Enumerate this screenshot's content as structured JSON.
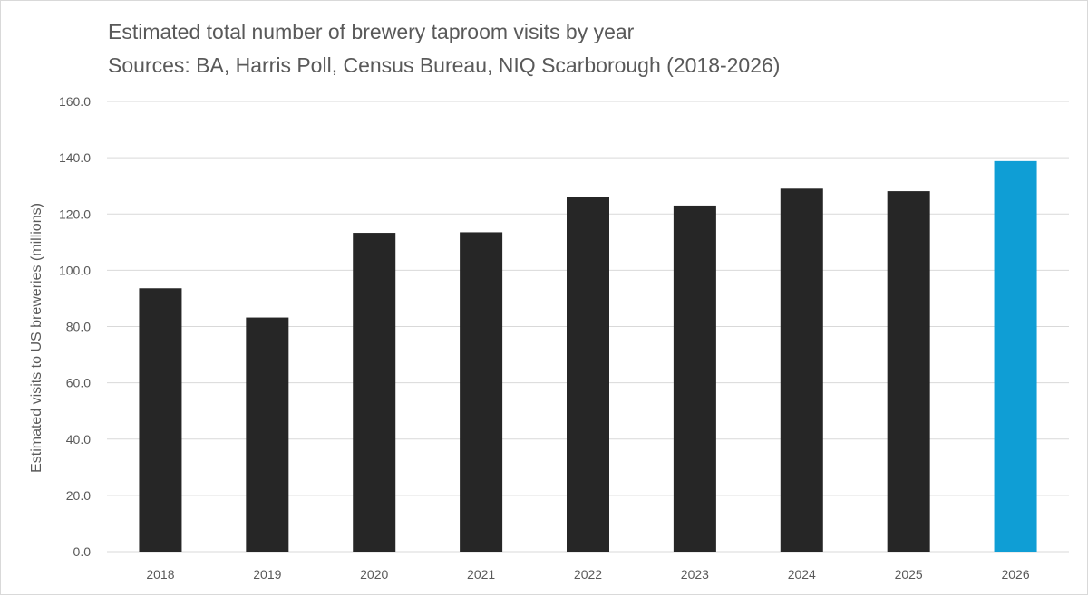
{
  "chart_data": {
    "type": "bar",
    "title": "Estimated total number of brewery taproom visits by year",
    "subtitle": "Sources: BA, Harris Poll, Census Bureau, NIQ Scarborough (2018-2026)",
    "xlabel": "",
    "ylabel": "Estimated visits to US breweries (millions)",
    "categories": [
      "2018",
      "2019",
      "2020",
      "2021",
      "2022",
      "2023",
      "2024",
      "2025",
      "2026"
    ],
    "values": [
      93.6,
      83.2,
      113.3,
      113.5,
      126.0,
      123.0,
      129.0,
      128.1,
      138.8
    ],
    "ylim": [
      0,
      160
    ],
    "yticks": [
      "0.0",
      "20.0",
      "40.0",
      "60.0",
      "80.0",
      "100.0",
      "120.0",
      "140.0",
      "160.0"
    ],
    "grid": true,
    "legend": "none",
    "colors": {
      "default": "#262626",
      "highlight": "#0f9ed5"
    },
    "highlight_category": "2026"
  }
}
